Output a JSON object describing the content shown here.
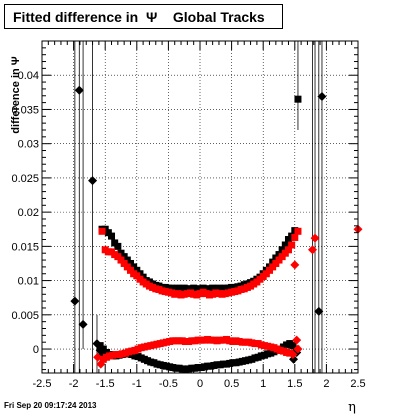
{
  "title": "Fitted difference in  Ψ    Global Tracks",
  "footer": "Fri Sep 20 09:17:24 2013",
  "chart_data": {
    "type": "scatter",
    "title": "Fitted difference in  Ψ    Global Tracks",
    "xlabel": "η",
    "ylabel": "difference in Ψ",
    "xlim": [
      -2.5,
      2.5
    ],
    "ylim": [
      -0.0035,
      0.045
    ],
    "xticks": [
      -2.5,
      -2,
      -1.5,
      -1,
      -0.5,
      0,
      0.5,
      1,
      1.5,
      2,
      2.5
    ],
    "xtick_labels": [
      "-2.5",
      "-2",
      "-1.5",
      "-1",
      "-0.5",
      "0",
      "0.5",
      "1",
      "1.5",
      "2",
      "2.5"
    ],
    "yticks": [
      0,
      0.005,
      0.01,
      0.015,
      0.02,
      0.025,
      0.03,
      0.035,
      0.04
    ],
    "ytick_labels": [
      "0",
      "0.005",
      "0.01",
      "0.015",
      "0.02",
      "0.025",
      "0.03",
      "0.035",
      "0.04"
    ],
    "grid": true,
    "series": [
      {
        "color": "#000000",
        "marker": "square",
        "points": [
          [
            -1.55,
            0.0175
          ],
          [
            -1.5,
            0.0175
          ],
          [
            -1.45,
            0.017
          ],
          [
            -1.4,
            0.0165
          ],
          [
            -1.35,
            0.0155
          ],
          [
            -1.3,
            0.015
          ],
          [
            -1.25,
            0.014
          ],
          [
            -1.2,
            0.0135
          ],
          [
            -1.15,
            0.013
          ],
          [
            -1.1,
            0.0125
          ],
          [
            -1.05,
            0.012
          ],
          [
            -1.0,
            0.0115
          ],
          [
            -0.95,
            0.011
          ],
          [
            -0.9,
            0.0105
          ],
          [
            -0.85,
            0.01
          ],
          [
            -0.8,
            0.0098
          ],
          [
            -0.75,
            0.0095
          ],
          [
            -0.7,
            0.0093
          ],
          [
            -0.65,
            0.0092
          ],
          [
            -0.6,
            0.009
          ],
          [
            -0.55,
            0.009
          ],
          [
            -0.5,
            0.0089
          ],
          [
            -0.45,
            0.0089
          ],
          [
            -0.4,
            0.0088
          ],
          [
            -0.35,
            0.0089
          ],
          [
            -0.3,
            0.0088
          ],
          [
            -0.25,
            0.0089
          ],
          [
            -0.2,
            0.0088
          ],
          [
            -0.15,
            0.0088
          ],
          [
            -0.1,
            0.0089
          ],
          [
            -0.05,
            0.0088
          ],
          [
            0.0,
            0.0088
          ],
          [
            0.05,
            0.0089
          ],
          [
            0.1,
            0.0088
          ],
          [
            0.15,
            0.0088
          ],
          [
            0.2,
            0.0089
          ],
          [
            0.25,
            0.0088
          ],
          [
            0.3,
            0.0089
          ],
          [
            0.35,
            0.0088
          ],
          [
            0.4,
            0.0089
          ],
          [
            0.45,
            0.0089
          ],
          [
            0.5,
            0.009
          ],
          [
            0.55,
            0.009
          ],
          [
            0.6,
            0.0091
          ],
          [
            0.65,
            0.0092
          ],
          [
            0.7,
            0.0094
          ],
          [
            0.75,
            0.0095
          ],
          [
            0.8,
            0.0097
          ],
          [
            0.85,
            0.0099
          ],
          [
            0.9,
            0.0102
          ],
          [
            0.95,
            0.0105
          ],
          [
            1.0,
            0.011
          ],
          [
            1.05,
            0.0115
          ],
          [
            1.1,
            0.012
          ],
          [
            1.15,
            0.0127
          ],
          [
            1.2,
            0.0133
          ],
          [
            1.25,
            0.0138
          ],
          [
            1.3,
            0.0145
          ],
          [
            1.35,
            0.0152
          ],
          [
            1.4,
            0.016
          ],
          [
            1.45,
            0.0165
          ],
          [
            1.5,
            0.0173
          ],
          [
            1.55,
            0.0365
          ],
          [
            -1.58,
            0.0005
          ],
          [
            -1.53,
            0.0
          ],
          [
            -1.48,
            -0.0005
          ],
          [
            -1.43,
            -0.0008
          ],
          [
            -1.38,
            -0.001
          ],
          [
            -1.33,
            -0.001
          ],
          [
            -1.28,
            -0.0009
          ],
          [
            -1.23,
            -0.0008
          ],
          [
            -1.18,
            -0.0007
          ],
          [
            -1.13,
            -0.0007
          ],
          [
            -1.08,
            -0.0008
          ],
          [
            -1.03,
            -0.001
          ],
          [
            -0.98,
            -0.0011
          ],
          [
            -0.93,
            -0.0013
          ],
          [
            -0.88,
            -0.0015
          ],
          [
            -0.83,
            -0.0017
          ],
          [
            -0.78,
            -0.0019
          ],
          [
            -0.73,
            -0.002
          ],
          [
            -0.68,
            -0.0022
          ],
          [
            -0.63,
            -0.0023
          ],
          [
            -0.58,
            -0.0024
          ],
          [
            -0.53,
            -0.0025
          ],
          [
            -0.48,
            -0.0026
          ],
          [
            -0.43,
            -0.0027
          ],
          [
            -0.38,
            -0.0028
          ],
          [
            -0.33,
            -0.0028
          ],
          [
            -0.28,
            -0.0029
          ],
          [
            -0.23,
            -0.003
          ],
          [
            -0.18,
            -0.0029
          ],
          [
            -0.13,
            -0.0028
          ],
          [
            -0.08,
            -0.0028
          ],
          [
            -0.03,
            -0.0027
          ],
          [
            0.02,
            -0.0027
          ],
          [
            0.07,
            -0.0026
          ],
          [
            0.12,
            -0.0025
          ],
          [
            0.17,
            -0.0025
          ],
          [
            0.22,
            -0.0024
          ],
          [
            0.27,
            -0.0023
          ],
          [
            0.32,
            -0.0023
          ],
          [
            0.37,
            -0.0022
          ],
          [
            0.42,
            -0.0022
          ],
          [
            0.47,
            -0.0021
          ],
          [
            0.52,
            -0.002
          ],
          [
            0.57,
            -0.002
          ],
          [
            0.62,
            -0.0019
          ],
          [
            0.67,
            -0.0018
          ],
          [
            0.72,
            -0.0017
          ],
          [
            0.77,
            -0.0016
          ],
          [
            0.82,
            -0.0015
          ],
          [
            0.87,
            -0.0013
          ],
          [
            0.92,
            -0.0012
          ],
          [
            0.97,
            -0.001
          ],
          [
            1.02,
            -0.0009
          ],
          [
            1.07,
            -0.0007
          ],
          [
            1.12,
            -0.0006
          ],
          [
            1.17,
            -0.0004
          ],
          [
            1.22,
            -0.0002
          ],
          [
            1.27,
            0.0
          ],
          [
            1.32,
            0.0003
          ],
          [
            1.37,
            0.0006
          ],
          [
            1.42,
            0.0008
          ],
          [
            1.47,
            0.0005
          ],
          [
            1.52,
            0.0
          ]
        ]
      },
      {
        "color": "#000000",
        "marker": "diamond",
        "points": [
          [
            -1.98,
            0.007
          ],
          [
            -1.91,
            0.0378
          ],
          [
            -1.85,
            0.0036
          ],
          [
            -1.7,
            0.0246
          ],
          [
            -1.63,
            0.0008
          ],
          [
            -1.58,
            -0.0002
          ],
          [
            -1.55,
            -0.0008
          ],
          [
            -1.5,
            -0.0013
          ],
          [
            1.48,
            -0.0015
          ],
          [
            1.53,
            -0.0005
          ],
          [
            1.88,
            0.0055
          ],
          [
            1.93,
            0.0369
          ]
        ]
      },
      {
        "color": "#ff0000",
        "marker": "square",
        "points": [
          [
            -1.55,
            0.0172
          ],
          [
            -1.5,
            0.0145
          ],
          [
            -1.45,
            0.0142
          ],
          [
            -1.4,
            0.0142
          ],
          [
            -1.35,
            0.0138
          ],
          [
            -1.3,
            0.0135
          ],
          [
            -1.25,
            0.013
          ],
          [
            -1.2,
            0.0125
          ],
          [
            -1.15,
            0.012
          ],
          [
            -1.1,
            0.0115
          ],
          [
            -1.05,
            0.011
          ],
          [
            -1.0,
            0.0107
          ],
          [
            -0.95,
            0.0102
          ],
          [
            -0.9,
            0.0098
          ],
          [
            -0.85,
            0.0095
          ],
          [
            -0.8,
            0.0092
          ],
          [
            -0.75,
            0.009
          ],
          [
            -0.7,
            0.0088
          ],
          [
            -0.65,
            0.0087
          ],
          [
            -0.6,
            0.0085
          ],
          [
            -0.55,
            0.0084
          ],
          [
            -0.5,
            0.0083
          ],
          [
            -0.45,
            0.0082
          ],
          [
            -0.4,
            0.008
          ],
          [
            -0.35,
            0.0081
          ],
          [
            -0.3,
            0.0079
          ],
          [
            -0.25,
            0.008
          ],
          [
            -0.2,
            0.0081
          ],
          [
            -0.15,
            0.0082
          ],
          [
            -0.1,
            0.008
          ],
          [
            -0.05,
            0.0079
          ],
          [
            0.0,
            0.0081
          ],
          [
            0.05,
            0.0083
          ],
          [
            0.1,
            0.0081
          ],
          [
            0.15,
            0.0079
          ],
          [
            0.2,
            0.008
          ],
          [
            0.25,
            0.0082
          ],
          [
            0.3,
            0.0081
          ],
          [
            0.35,
            0.008
          ],
          [
            0.4,
            0.0081
          ],
          [
            0.45,
            0.0082
          ],
          [
            0.5,
            0.0083
          ],
          [
            0.55,
            0.0084
          ],
          [
            0.6,
            0.0085
          ],
          [
            0.65,
            0.0087
          ],
          [
            0.7,
            0.0088
          ],
          [
            0.75,
            0.009
          ],
          [
            0.8,
            0.0092
          ],
          [
            0.85,
            0.0095
          ],
          [
            0.9,
            0.0098
          ],
          [
            0.95,
            0.0102
          ],
          [
            1.0,
            0.0106
          ],
          [
            1.05,
            0.011
          ],
          [
            1.1,
            0.0115
          ],
          [
            1.15,
            0.012
          ],
          [
            1.2,
            0.0125
          ],
          [
            1.25,
            0.013
          ],
          [
            1.3,
            0.0135
          ],
          [
            1.35,
            0.014
          ],
          [
            1.4,
            0.0145
          ],
          [
            1.45,
            0.0152
          ],
          [
            1.5,
            0.0163
          ],
          [
            1.55,
            0.0172
          ],
          [
            -1.53,
            -0.0015
          ],
          [
            -1.48,
            -0.0012
          ],
          [
            -1.43,
            -0.001
          ],
          [
            -1.38,
            -0.0009
          ],
          [
            -1.33,
            -0.0008
          ],
          [
            -1.28,
            -0.0008
          ],
          [
            -1.23,
            -0.0007
          ],
          [
            -1.18,
            -0.0006
          ],
          [
            -1.13,
            -0.0004
          ],
          [
            -1.08,
            -0.0003
          ],
          [
            -1.03,
            -0.0002
          ],
          [
            -0.98,
            0.0
          ],
          [
            -0.93,
            0.0002
          ],
          [
            -0.88,
            0.0003
          ],
          [
            -0.83,
            0.0004
          ],
          [
            -0.78,
            0.0005
          ],
          [
            -0.73,
            0.0006
          ],
          [
            -0.68,
            0.0007
          ],
          [
            -0.63,
            0.0008
          ],
          [
            -0.58,
            0.0009
          ],
          [
            -0.53,
            0.001
          ],
          [
            -0.48,
            0.0011
          ],
          [
            -0.43,
            0.0012
          ],
          [
            -0.38,
            0.0012
          ],
          [
            -0.33,
            0.0012
          ],
          [
            -0.28,
            0.0012
          ],
          [
            -0.23,
            0.0011
          ],
          [
            -0.18,
            0.0011
          ],
          [
            -0.13,
            0.0012
          ],
          [
            -0.08,
            0.0012
          ],
          [
            -0.03,
            0.0013
          ],
          [
            0.02,
            0.0013
          ],
          [
            0.07,
            0.0013
          ],
          [
            0.12,
            0.0014
          ],
          [
            0.17,
            0.0013
          ],
          [
            0.22,
            0.0013
          ],
          [
            0.27,
            0.0012
          ],
          [
            0.32,
            0.0013
          ],
          [
            0.37,
            0.0013
          ],
          [
            0.42,
            0.0014
          ],
          [
            0.47,
            0.0012
          ],
          [
            0.52,
            0.0011
          ],
          [
            0.57,
            0.0012
          ],
          [
            0.62,
            0.0011
          ],
          [
            0.67,
            0.001
          ],
          [
            0.72,
            0.001
          ],
          [
            0.77,
            0.001
          ],
          [
            0.82,
            0.0009
          ],
          [
            0.87,
            0.0008
          ],
          [
            0.92,
            0.0008
          ],
          [
            0.97,
            0.0006
          ],
          [
            1.02,
            0.0005
          ],
          [
            1.07,
            0.0004
          ],
          [
            1.12,
            0.0003
          ],
          [
            1.17,
            0.0002
          ],
          [
            1.22,
            0.0
          ],
          [
            1.27,
            -0.0002
          ],
          [
            1.32,
            -0.0003
          ],
          [
            1.37,
            -0.0005
          ],
          [
            1.42,
            -0.0006
          ]
        ]
      },
      {
        "color": "#ff0000",
        "marker": "diamond",
        "points": [
          [
            -1.62,
            -0.0012
          ],
          [
            -1.57,
            -0.0022
          ],
          [
            1.5,
            0.0123
          ],
          [
            1.53,
            0.0013
          ],
          [
            1.47,
            -0.0008
          ],
          [
            1.55,
            0.0
          ],
          [
            1.78,
            0.0145
          ],
          [
            1.82,
            0.0162
          ],
          [
            2.5,
            0.0175
          ]
        ]
      }
    ]
  }
}
